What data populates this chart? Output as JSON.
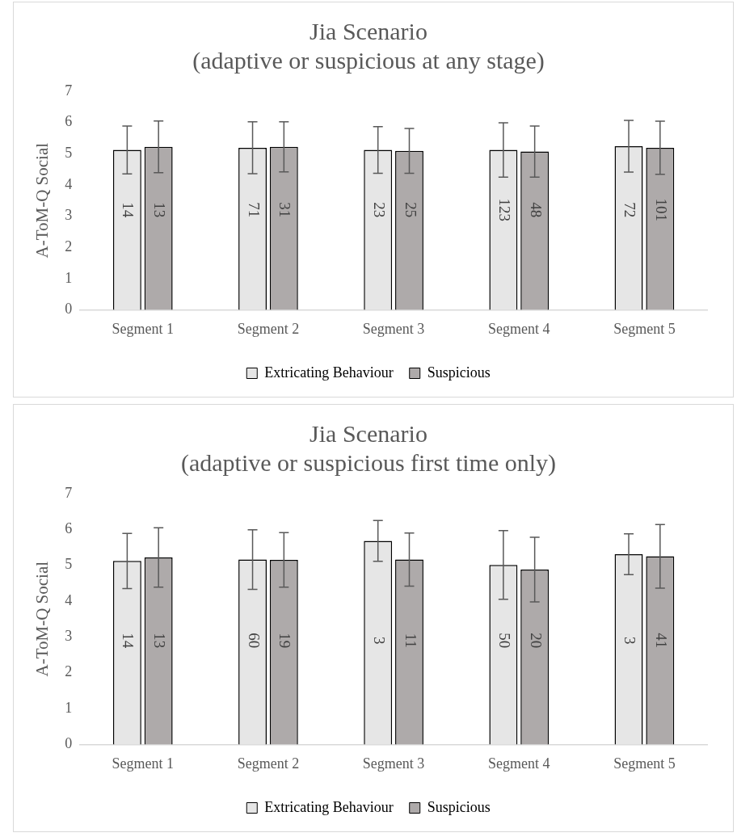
{
  "chart_data": [
    {
      "type": "bar",
      "title": "Jia Scenario",
      "subtitle": "(adaptive or suspicious at any stage)",
      "ylabel": "A-ToM-Q Social",
      "categories": [
        "Segment 1",
        "Segment 2",
        "Segment 3",
        "Segment 4",
        "Segment 5"
      ],
      "series": [
        {
          "name": "Extricating Behaviour",
          "color": "#e6e6e6",
          "values": [
            5.12,
            5.19,
            5.12,
            5.12,
            5.24
          ],
          "errors": [
            0.77,
            0.83,
            0.75,
            0.87,
            0.83
          ]
        },
        {
          "name": "Suspicious",
          "color": "#aeaaaa",
          "values": [
            5.22,
            5.22,
            5.09,
            5.07,
            5.19
          ],
          "errors": [
            0.83,
            0.8,
            0.72,
            0.82,
            0.85
          ]
        }
      ],
      "annotations": [
        {
          "text": "14",
          "x": "Segment 1",
          "y": 3.2
        },
        {
          "text": "13",
          "x": "Segment 1",
          "y": 3.2
        },
        {
          "text": "71",
          "x": "Segment 2",
          "y": 3.2
        },
        {
          "text": "31",
          "x": "Segment 2",
          "y": 3.2
        },
        {
          "text": "23",
          "x": "Segment 3",
          "y": 3.2
        },
        {
          "text": "25",
          "x": "Segment 3",
          "y": 3.2
        },
        {
          "text": "123",
          "x": "Segment 4",
          "y": 3.2
        },
        {
          "text": "48",
          "x": "Segment 4",
          "y": 3.2
        },
        {
          "text": "72",
          "x": "Segment 5",
          "y": 3.2
        },
        {
          "text": "101",
          "x": "Segment 5",
          "y": 3.2
        }
      ],
      "ylim": [
        0,
        7
      ],
      "yticks": [
        0,
        1,
        2,
        3,
        4,
        5,
        6,
        7
      ],
      "grid": false,
      "legend": "bottom"
    },
    {
      "type": "bar",
      "title": "Jia Scenario",
      "subtitle": "(adaptive or suspicious first time only)",
      "ylabel": "A-ToM-Q Social",
      "categories": [
        "Segment 1",
        "Segment 2",
        "Segment 3",
        "Segment 4",
        "Segment 5"
      ],
      "series": [
        {
          "name": "Extricating Behaviour",
          "color": "#e6e6e6",
          "values": [
            5.12,
            5.16,
            5.68,
            5.01,
            5.31
          ],
          "errors": [
            0.77,
            0.83,
            0.57,
            0.96,
            0.57
          ]
        },
        {
          "name": "Suspicious",
          "color": "#aeaaaa",
          "values": [
            5.22,
            5.15,
            5.16,
            4.88,
            5.25
          ],
          "errors": [
            0.83,
            0.76,
            0.74,
            0.9,
            0.89
          ]
        }
      ],
      "annotations": [
        {
          "text": "14",
          "x": "Segment 1",
          "y": 2.9
        },
        {
          "text": "13",
          "x": "Segment 1",
          "y": 2.9
        },
        {
          "text": "60",
          "x": "Segment 2",
          "y": 2.9
        },
        {
          "text": "19",
          "x": "Segment 2",
          "y": 2.9
        },
        {
          "text": "3",
          "x": "Segment 3",
          "y": 2.9
        },
        {
          "text": "11",
          "x": "Segment 3",
          "y": 2.9
        },
        {
          "text": "50",
          "x": "Segment 4",
          "y": 2.9
        },
        {
          "text": "20",
          "x": "Segment 4",
          "y": 2.9
        },
        {
          "text": "3",
          "x": "Segment 5",
          "y": 2.9
        },
        {
          "text": "41",
          "x": "Segment 5",
          "y": 2.9
        }
      ],
      "ylim": [
        0,
        7
      ],
      "yticks": [
        0,
        1,
        2,
        3,
        4,
        5,
        6,
        7
      ],
      "grid": false,
      "legend": "bottom"
    }
  ]
}
